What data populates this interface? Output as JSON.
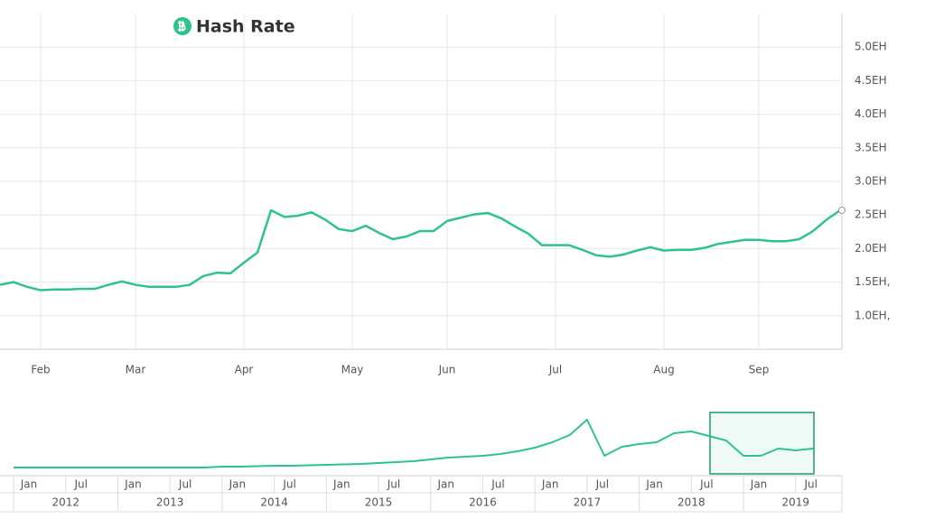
{
  "chart_data": [
    {
      "type": "line",
      "title": "Hash Rate",
      "color": "#2fc38a",
      "categories": [
        null,
        null,
        null,
        "Feb",
        null,
        null,
        null,
        null,
        null,
        null,
        "Mar",
        null,
        null,
        null,
        null,
        null,
        null,
        null,
        "Apr",
        null,
        null,
        null,
        null,
        null,
        null,
        null,
        "May",
        null,
        null,
        null,
        null,
        null,
        null,
        "Jun",
        null,
        null,
        null,
        null,
        null,
        null,
        null,
        "Jul",
        null,
        null,
        null,
        null,
        null,
        null,
        null,
        "Aug",
        null,
        null,
        null,
        null,
        null,
        null,
        "Sep",
        null,
        null,
        null,
        null,
        null,
        null
      ],
      "values": [
        1.46,
        1.5,
        1.43,
        1.38,
        1.39,
        1.39,
        1.4,
        1.4,
        1.46,
        1.51,
        1.46,
        1.43,
        1.43,
        1.43,
        1.46,
        1.59,
        1.64,
        1.63,
        1.79,
        1.94,
        2.57,
        2.47,
        2.49,
        2.54,
        2.43,
        2.29,
        2.26,
        2.34,
        2.23,
        2.14,
        2.18,
        2.26,
        2.26,
        2.41,
        2.46,
        2.51,
        2.53,
        2.45,
        2.33,
        2.22,
        2.05,
        2.05,
        2.05,
        1.98,
        1.9,
        1.88,
        1.91,
        1.97,
        2.02,
        1.97,
        1.98,
        1.98,
        2.01,
        2.07,
        2.1,
        2.13,
        2.13,
        2.11,
        2.11,
        2.14,
        2.26,
        2.43,
        2.57
      ],
      "ylim": [
        0.5,
        5.5
      ],
      "yticks": [
        {
          "value": 1.0,
          "label": "1.0EH,"
        },
        {
          "value": 1.5,
          "label": "1.5EH,"
        },
        {
          "value": 2.0,
          "label": "2.0EH"
        },
        {
          "value": 2.5,
          "label": "2.5EH"
        },
        {
          "value": 3.0,
          "label": "3.0EH"
        },
        {
          "value": 3.5,
          "label": "3.5EH"
        },
        {
          "value": 4.0,
          "label": "4.0EH"
        },
        {
          "value": 4.5,
          "label": "4.5EH"
        },
        {
          "value": 5.0,
          "label": "5.0EH"
        }
      ],
      "grid": true
    },
    {
      "type": "line",
      "color": "#2fc38a",
      "categories": [
        "Jan",
        null,
        null,
        "Jul",
        null,
        null,
        "Jan",
        null,
        null,
        "Jul",
        null,
        null,
        "Jan",
        null,
        null,
        "Jul",
        null,
        null,
        "Jan",
        null,
        null,
        "Jul",
        null,
        null,
        "Jan",
        null,
        null,
        "Jul",
        null,
        null,
        "Jan",
        null,
        null,
        "Jul",
        null,
        null,
        "Jan",
        null,
        null,
        "Jul",
        null,
        null,
        "Jan",
        null,
        null,
        "Jul",
        null
      ],
      "years": [
        "2012",
        "2013",
        "2014",
        "2015",
        "2016",
        "2017",
        "2018",
        "2019"
      ],
      "values": [
        0.4,
        0.4,
        0.4,
        0.4,
        0.4,
        0.4,
        0.4,
        0.4,
        0.4,
        0.4,
        0.4,
        0.4,
        0.5,
        0.5,
        0.55,
        0.6,
        0.6,
        0.65,
        0.7,
        0.75,
        0.8,
        0.9,
        1.0,
        1.1,
        1.3,
        1.5,
        1.6,
        1.7,
        1.9,
        2.2,
        2.6,
        3.2,
        4.0,
        5.7,
        1.7,
        2.7,
        3.0,
        3.2,
        4.2,
        4.4,
        3.9,
        3.4,
        1.7,
        1.7,
        2.5,
        2.3,
        2.5
      ],
      "ylim": [
        0,
        6.5
      ]
    }
  ]
}
